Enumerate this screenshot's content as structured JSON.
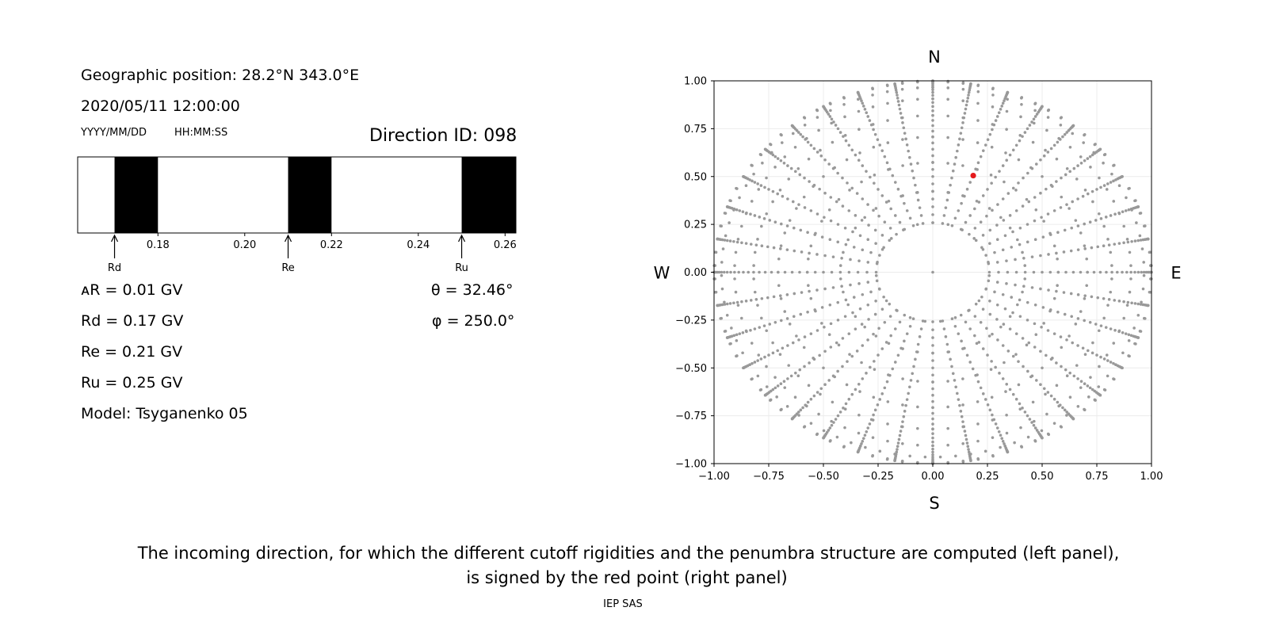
{
  "left_panel": {
    "geo_position": "Geographic position: 28.2°N 343.0°E",
    "datetime": "2020/05/11 12:00:00",
    "date_format": "YYYY/MM/DD",
    "time_format": "HH:MM:SS",
    "direction_id": "Direction ID: 098",
    "delta_r": "ᴀR = 0.01 GV",
    "rd": "Rd = 0.17 GV",
    "re": "Re = 0.21 GV",
    "ru": "Ru = 0.25 GV",
    "model": "Model: Tsyganenko 05",
    "theta": "θ = 32.46°",
    "phi": "φ = 250.0°"
  },
  "caption_line1": "The incoming direction, for which the different cutoff rigidities and the penumbra structure are computed (left panel),",
  "caption_line2": "is signed by the red point (right panel)",
  "footer": "IEP SAS",
  "chart_data": [
    {
      "type": "bar",
      "subtype": "penumbra-band",
      "xlim": [
        0.1615,
        0.2625
      ],
      "xticks": [
        "0.18",
        "0.20",
        "0.22",
        "0.24",
        "0.26"
      ],
      "xtick_values": [
        0.18,
        0.2,
        0.22,
        0.24,
        0.26
      ],
      "forbidden_bands": [
        [
          0.17,
          0.18
        ],
        [
          0.21,
          0.22
        ],
        [
          0.25,
          0.2625
        ]
      ],
      "markers": [
        {
          "label": "Rd",
          "value": 0.17
        },
        {
          "label": "Re",
          "value": 0.21
        },
        {
          "label": "Ru",
          "value": 0.25
        }
      ]
    },
    {
      "type": "scatter",
      "subtype": "direction-map",
      "xlim": [
        -1.0,
        1.0
      ],
      "ylim": [
        -1.0,
        1.0
      ],
      "xticks": [
        "−1.00",
        "−0.75",
        "−0.50",
        "−0.25",
        "0.00",
        "0.25",
        "0.50",
        "0.75",
        "1.00"
      ],
      "yticks": [
        "1.00",
        "0.75",
        "0.50",
        "0.25",
        "0.00",
        "−0.25",
        "−0.50",
        "−0.75",
        "−1.00"
      ],
      "tick_values": [
        -1.0,
        -0.75,
        -0.5,
        -0.25,
        0.0,
        0.25,
        0.5,
        0.75,
        1.0
      ],
      "compass": {
        "north": "N",
        "south": "S",
        "west": "W",
        "east": "E"
      },
      "grid": true,
      "grid_series": {
        "color": "#999999",
        "zenith_angles_deg": [
          15,
          25,
          35,
          45,
          55,
          65,
          75,
          85,
          90
        ],
        "azimuth_step_deg": 10,
        "ray_steps": 30,
        "ray_zenith_start_deg": 15,
        "ray_zenith_end_deg": 90
      },
      "highlight": {
        "x": 0.185,
        "y": 0.505,
        "color": "#e41a1c"
      }
    }
  ]
}
